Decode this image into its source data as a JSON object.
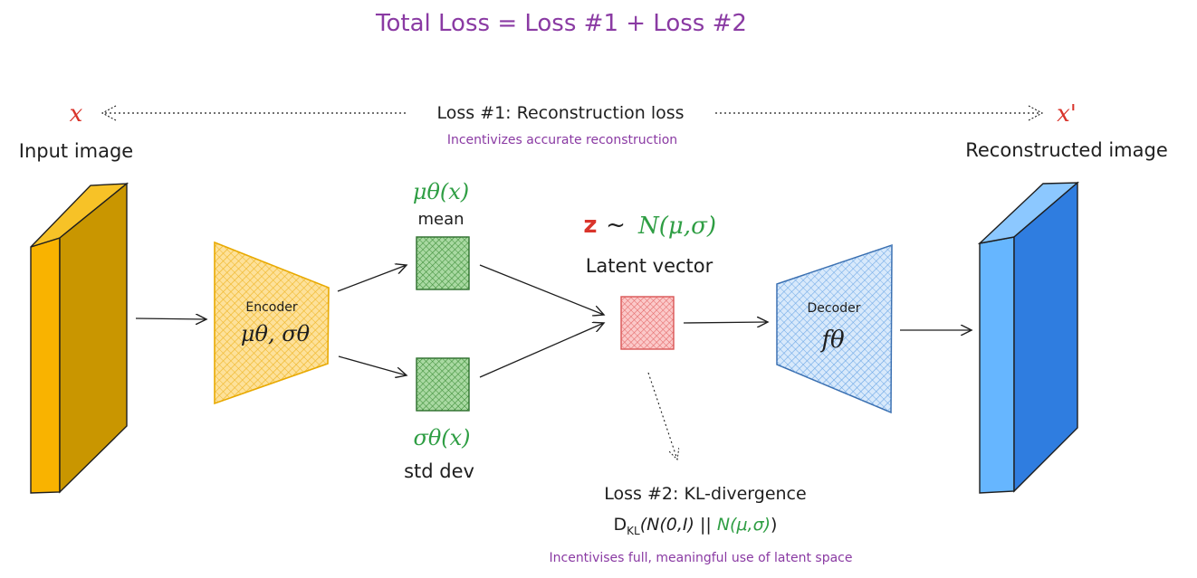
{
  "total_loss": "Total Loss = Loss #1 + Loss #2",
  "input": {
    "symbol": "x",
    "label": "Input image"
  },
  "output": {
    "symbol": "x'",
    "label": "Reconstructed image"
  },
  "loss1": {
    "title": "Loss #1: Reconstruction loss",
    "subtitle": "Incentivizes accurate reconstruction"
  },
  "encoder": {
    "label": "Encoder",
    "params": "μθ, σθ"
  },
  "mean_node": {
    "formula": "μθ(x)",
    "label": "mean"
  },
  "std_node": {
    "formula": "σθ(x)",
    "label": "std dev"
  },
  "latent": {
    "z": "z",
    "tilde": "~",
    "dist": "N(μ,σ)",
    "label": "Latent vector"
  },
  "decoder": {
    "label": "Decoder",
    "params": "fθ"
  },
  "loss2": {
    "title": "Loss #2: KL-divergence",
    "formula_prefix": "D",
    "formula_sub": "KL",
    "formula_mid": "(N(0,I) || ",
    "formula_green": "N(μ,σ)",
    "formula_end": ")",
    "subtitle": "Incentivises full, meaningful use of latent space"
  },
  "colors": {
    "input_front": "#f9b300",
    "input_side": "#c99600",
    "encoder_fill": "#fcd57a",
    "encoder_stroke": "#e8a900",
    "node_green": "#73b56c",
    "node_red": "#f4a0a0",
    "decoder_fill": "#bcd8f6",
    "output_front": "#66b6ff",
    "output_side": "#2f7de0",
    "purple": "#8a3aa3",
    "green": "#2f9e44",
    "red": "#d9342b"
  }
}
